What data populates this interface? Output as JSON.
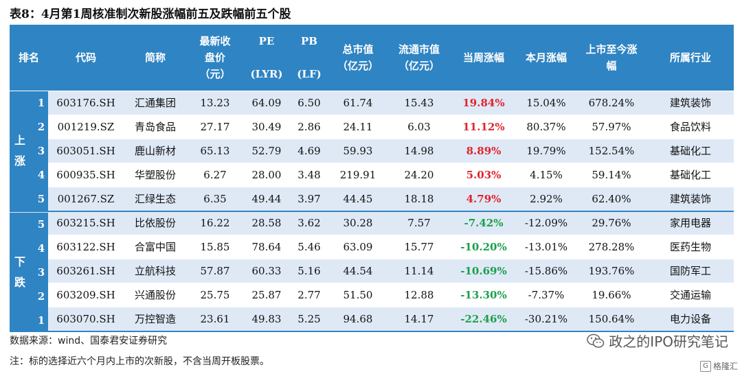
{
  "title": "表8：4月第1周核准制次新股涨幅前五及跌幅前五个股",
  "headers": [
    {
      "lines": [
        "排名"
      ]
    },
    {
      "lines": [
        "代码"
      ]
    },
    {
      "lines": [
        "简称"
      ]
    },
    {
      "lines": [
        "最新收",
        "盘价",
        "（元）"
      ]
    },
    {
      "lines": [
        "PE",
        "",
        "(LYR)"
      ]
    },
    {
      "lines": [
        "PB",
        "",
        "(LF)"
      ]
    },
    {
      "lines": [
        "总市值",
        "（亿元）"
      ]
    },
    {
      "lines": [
        "流通市值",
        "（亿元）"
      ]
    },
    {
      "lines": [
        "当周涨幅"
      ]
    },
    {
      "lines": [
        "本月涨幅"
      ]
    },
    {
      "lines": [
        "上市至今涨",
        "幅"
      ]
    },
    {
      "lines": [
        "所属行业"
      ]
    }
  ],
  "groups": [
    {
      "label_top": "上",
      "label_bottom": "涨"
    },
    {
      "label_top": "下",
      "label_bottom": "跌"
    }
  ],
  "rows": [
    {
      "rank": "1",
      "code": "603176.SH",
      "name": "汇通集团",
      "price": "13.23",
      "pe": "64.09",
      "pb": "6.50",
      "mcap": "61.74",
      "float_mcap": "15.43",
      "week": "19.84%",
      "month": "15.04%",
      "since": "678.24%",
      "industry": "建筑装饰"
    },
    {
      "rank": "2",
      "code": "001219.SZ",
      "name": "青岛食品",
      "price": "27.17",
      "pe": "30.49",
      "pb": "2.86",
      "mcap": "24.11",
      "float_mcap": "6.03",
      "week": "11.12%",
      "month": "80.37%",
      "since": "57.97%",
      "industry": "食品饮料"
    },
    {
      "rank": "3",
      "code": "603051.SH",
      "name": "鹿山新材",
      "price": "65.13",
      "pe": "52.79",
      "pb": "4.69",
      "mcap": "59.93",
      "float_mcap": "14.98",
      "week": "8.89%",
      "month": "19.79%",
      "since": "152.54%",
      "industry": "基础化工"
    },
    {
      "rank": "4",
      "code": "600935.SH",
      "name": "华塑股份",
      "price": "6.27",
      "pe": "28.00",
      "pb": "3.48",
      "mcap": "219.91",
      "float_mcap": "24.20",
      "week": "5.03%",
      "month": "4.15%",
      "since": "59.14%",
      "industry": "基础化工"
    },
    {
      "rank": "5",
      "code": "001267.SZ",
      "name": "汇绿生态",
      "price": "6.35",
      "pe": "49.44",
      "pb": "3.97",
      "mcap": "44.45",
      "float_mcap": "18.18",
      "week": "4.79%",
      "month": "2.92%",
      "since": "62.40%",
      "industry": "建筑装饰"
    },
    {
      "rank": "5",
      "code": "603215.SH",
      "name": "比依股份",
      "price": "16.22",
      "pe": "28.58",
      "pb": "3.62",
      "mcap": "30.28",
      "float_mcap": "7.57",
      "week": "-7.42%",
      "month": "-12.09%",
      "since": "29.76%",
      "industry": "家用电器"
    },
    {
      "rank": "4",
      "code": "603122.SH",
      "name": "合富中国",
      "price": "15.85",
      "pe": "78.64",
      "pb": "5.46",
      "mcap": "63.09",
      "float_mcap": "15.77",
      "week": "-10.20%",
      "month": "-13.01%",
      "since": "278.28%",
      "industry": "医药生物"
    },
    {
      "rank": "3",
      "code": "603261.SH",
      "name": "立航科技",
      "price": "57.87",
      "pe": "60.33",
      "pb": "5.16",
      "mcap": "44.54",
      "float_mcap": "11.14",
      "week": "-10.69%",
      "month": "-15.86%",
      "since": "193.76%",
      "industry": "国防军工"
    },
    {
      "rank": "2",
      "code": "603209.SH",
      "name": "兴通股份",
      "price": "25.75",
      "pe": "25.87",
      "pb": "2.77",
      "mcap": "51.50",
      "float_mcap": "12.88",
      "week": "-13.30%",
      "month": "-7.37%",
      "since": "19.66%",
      "industry": "交通运输"
    },
    {
      "rank": "1",
      "code": "603070.SH",
      "name": "万控智造",
      "price": "23.61",
      "pe": "49.83",
      "pb": "5.25",
      "mcap": "94.68",
      "float_mcap": "14.17",
      "week": "-22.46%",
      "month": "-30.21%",
      "since": "150.64%",
      "industry": "电力设备"
    }
  ],
  "source": "数据来源：wind、国泰君安证券研究",
  "note": "注：标的选择近六个月内上市的次新股，不含当周开板股票。",
  "watermark": "政之的IPO研究笔记",
  "logo": "格隆汇",
  "colors": {
    "header_bg": "#2f84c3",
    "band": "#dfe9f6",
    "up": "#e0242a",
    "down": "#1aa04a"
  }
}
